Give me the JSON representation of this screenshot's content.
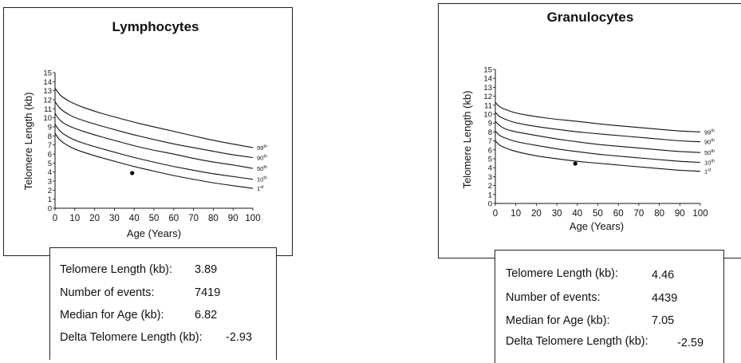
{
  "chart_data": [
    {
      "type": "line",
      "title": "Lymphocytes",
      "xlabel": "Age (Years)",
      "ylabel": "Telomere Length (kb)",
      "xlim": [
        0,
        100
      ],
      "ylim": [
        0,
        15
      ],
      "x_ticks": [
        "0",
        "10",
        "20",
        "30",
        "40",
        "50",
        "60",
        "70",
        "80",
        "90",
        "100"
      ],
      "y_ticks": [
        "0",
        "1",
        "2",
        "3",
        "4",
        "5",
        "6",
        "7",
        "8",
        "9",
        "10",
        "11",
        "12",
        "13",
        "14",
        "15"
      ],
      "grid": false,
      "legend": "right-end-labels",
      "series": [
        {
          "name": "99th",
          "points": [
            [
              0,
              13.3
            ],
            [
              2,
              12.6
            ],
            [
              5,
              12.1
            ],
            [
              10,
              11.5
            ],
            [
              20,
              10.7
            ],
            [
              30,
              10.1
            ],
            [
              40,
              9.5
            ],
            [
              50,
              9.0
            ],
            [
              60,
              8.5
            ],
            [
              70,
              8.0
            ],
            [
              80,
              7.5
            ],
            [
              90,
              7.1
            ],
            [
              100,
              6.7
            ]
          ]
        },
        {
          "name": "90th",
          "points": [
            [
              0,
              11.8
            ],
            [
              2,
              11.1
            ],
            [
              5,
              10.6
            ],
            [
              10,
              10.0
            ],
            [
              20,
              9.3
            ],
            [
              30,
              8.7
            ],
            [
              40,
              8.1
            ],
            [
              50,
              7.6
            ],
            [
              60,
              7.1
            ],
            [
              70,
              6.7
            ],
            [
              80,
              6.3
            ],
            [
              90,
              5.9
            ],
            [
              100,
              5.6
            ]
          ]
        },
        {
          "name": "50th",
          "points": [
            [
              0,
              10.5
            ],
            [
              2,
              9.8
            ],
            [
              5,
              9.3
            ],
            [
              10,
              8.8
            ],
            [
              20,
              8.1
            ],
            [
              30,
              7.5
            ],
            [
              40,
              6.9
            ],
            [
              50,
              6.4
            ],
            [
              60,
              6.0
            ],
            [
              70,
              5.5
            ],
            [
              80,
              5.1
            ],
            [
              90,
              4.8
            ],
            [
              100,
              4.4
            ]
          ]
        },
        {
          "name": "10th",
          "points": [
            [
              0,
              9.3
            ],
            [
              2,
              8.6
            ],
            [
              5,
              8.1
            ],
            [
              10,
              7.5
            ],
            [
              20,
              6.8
            ],
            [
              30,
              6.2
            ],
            [
              40,
              5.6
            ],
            [
              50,
              5.1
            ],
            [
              60,
              4.6
            ],
            [
              70,
              4.2
            ],
            [
              80,
              3.8
            ],
            [
              90,
              3.5
            ],
            [
              100,
              3.2
            ]
          ]
        },
        {
          "name": "1st",
          "points": [
            [
              0,
              8.3
            ],
            [
              2,
              7.6
            ],
            [
              5,
              7.1
            ],
            [
              10,
              6.5
            ],
            [
              20,
              5.8
            ],
            [
              30,
              5.2
            ],
            [
              40,
              4.6
            ],
            [
              50,
              4.1
            ],
            [
              60,
              3.6
            ],
            [
              70,
              3.2
            ],
            [
              80,
              2.8
            ],
            [
              90,
              2.5
            ],
            [
              100,
              2.2
            ]
          ]
        }
      ],
      "marker": {
        "x": 39,
        "y": 3.89
      }
    },
    {
      "type": "line",
      "title": "Granulocytes",
      "xlabel": "Age (Years)",
      "ylabel": "Telomere Length (kb)",
      "xlim": [
        0,
        100
      ],
      "ylim": [
        0,
        15
      ],
      "x_ticks": [
        "0",
        "10",
        "20",
        "30",
        "40",
        "50",
        "60",
        "70",
        "80",
        "90",
        "100"
      ],
      "y_ticks": [
        "0",
        "1",
        "2",
        "3",
        "4",
        "5",
        "6",
        "7",
        "8",
        "9",
        "10",
        "11",
        "12",
        "13",
        "14",
        "15"
      ],
      "grid": false,
      "legend": "right-end-labels",
      "series": [
        {
          "name": "99th",
          "points": [
            [
              0,
              11.3
            ],
            [
              2,
              10.8
            ],
            [
              5,
              10.5
            ],
            [
              10,
              10.1
            ],
            [
              20,
              9.7
            ],
            [
              30,
              9.4
            ],
            [
              40,
              9.2
            ],
            [
              50,
              8.9
            ],
            [
              60,
              8.7
            ],
            [
              70,
              8.5
            ],
            [
              80,
              8.3
            ],
            [
              90,
              8.1
            ],
            [
              100,
              8.0
            ]
          ]
        },
        {
          "name": "90th",
          "points": [
            [
              0,
              10.2
            ],
            [
              2,
              9.7
            ],
            [
              5,
              9.4
            ],
            [
              10,
              9.0
            ],
            [
              20,
              8.6
            ],
            [
              30,
              8.3
            ],
            [
              40,
              8.0
            ],
            [
              50,
              7.8
            ],
            [
              60,
              7.6
            ],
            [
              70,
              7.4
            ],
            [
              80,
              7.2
            ],
            [
              90,
              7.0
            ],
            [
              100,
              6.9
            ]
          ]
        },
        {
          "name": "50th",
          "points": [
            [
              0,
              9.2
            ],
            [
              2,
              8.7
            ],
            [
              5,
              8.3
            ],
            [
              10,
              8.0
            ],
            [
              20,
              7.6
            ],
            [
              30,
              7.2
            ],
            [
              40,
              6.9
            ],
            [
              50,
              6.6
            ],
            [
              60,
              6.4
            ],
            [
              70,
              6.2
            ],
            [
              80,
              6.0
            ],
            [
              90,
              5.8
            ],
            [
              100,
              5.7
            ]
          ]
        },
        {
          "name": "10th",
          "points": [
            [
              0,
              8.1
            ],
            [
              2,
              7.6
            ],
            [
              5,
              7.3
            ],
            [
              10,
              6.9
            ],
            [
              20,
              6.5
            ],
            [
              30,
              6.1
            ],
            [
              40,
              5.8
            ],
            [
              50,
              5.5
            ],
            [
              60,
              5.3
            ],
            [
              70,
              5.1
            ],
            [
              80,
              4.9
            ],
            [
              90,
              4.7
            ],
            [
              100,
              4.6
            ]
          ]
        },
        {
          "name": "1st",
          "points": [
            [
              0,
              7.0
            ],
            [
              2,
              6.5
            ],
            [
              5,
              6.2
            ],
            [
              10,
              5.8
            ],
            [
              20,
              5.3
            ],
            [
              30,
              5.0
            ],
            [
              40,
              4.7
            ],
            [
              50,
              4.5
            ],
            [
              60,
              4.3
            ],
            [
              70,
              4.1
            ],
            [
              80,
              3.9
            ],
            [
              90,
              3.7
            ],
            [
              100,
              3.6
            ]
          ]
        }
      ],
      "marker": {
        "x": 39,
        "y": 4.46
      }
    }
  ],
  "info": {
    "lymphocytes": {
      "telomere_label": "Telomere Length (kb):",
      "telomere_value": "3.89",
      "events_label": "Number of events:",
      "events_value": "7419",
      "median_label": "Median for Age (kb):",
      "median_value": "6.82",
      "delta_label": "Delta Telomere Length (kb):",
      "delta_value": "-2.93"
    },
    "granulocytes": {
      "telomere_label": "Telomere Length (kb):",
      "telomere_value": "4.46",
      "events_label": "Number of events:",
      "events_value": "4439",
      "median_label": "Median for Age (kb):",
      "median_value": "7.05",
      "delta_label": "Delta Telomere Length (kb):",
      "delta_value": "-2.59"
    }
  }
}
